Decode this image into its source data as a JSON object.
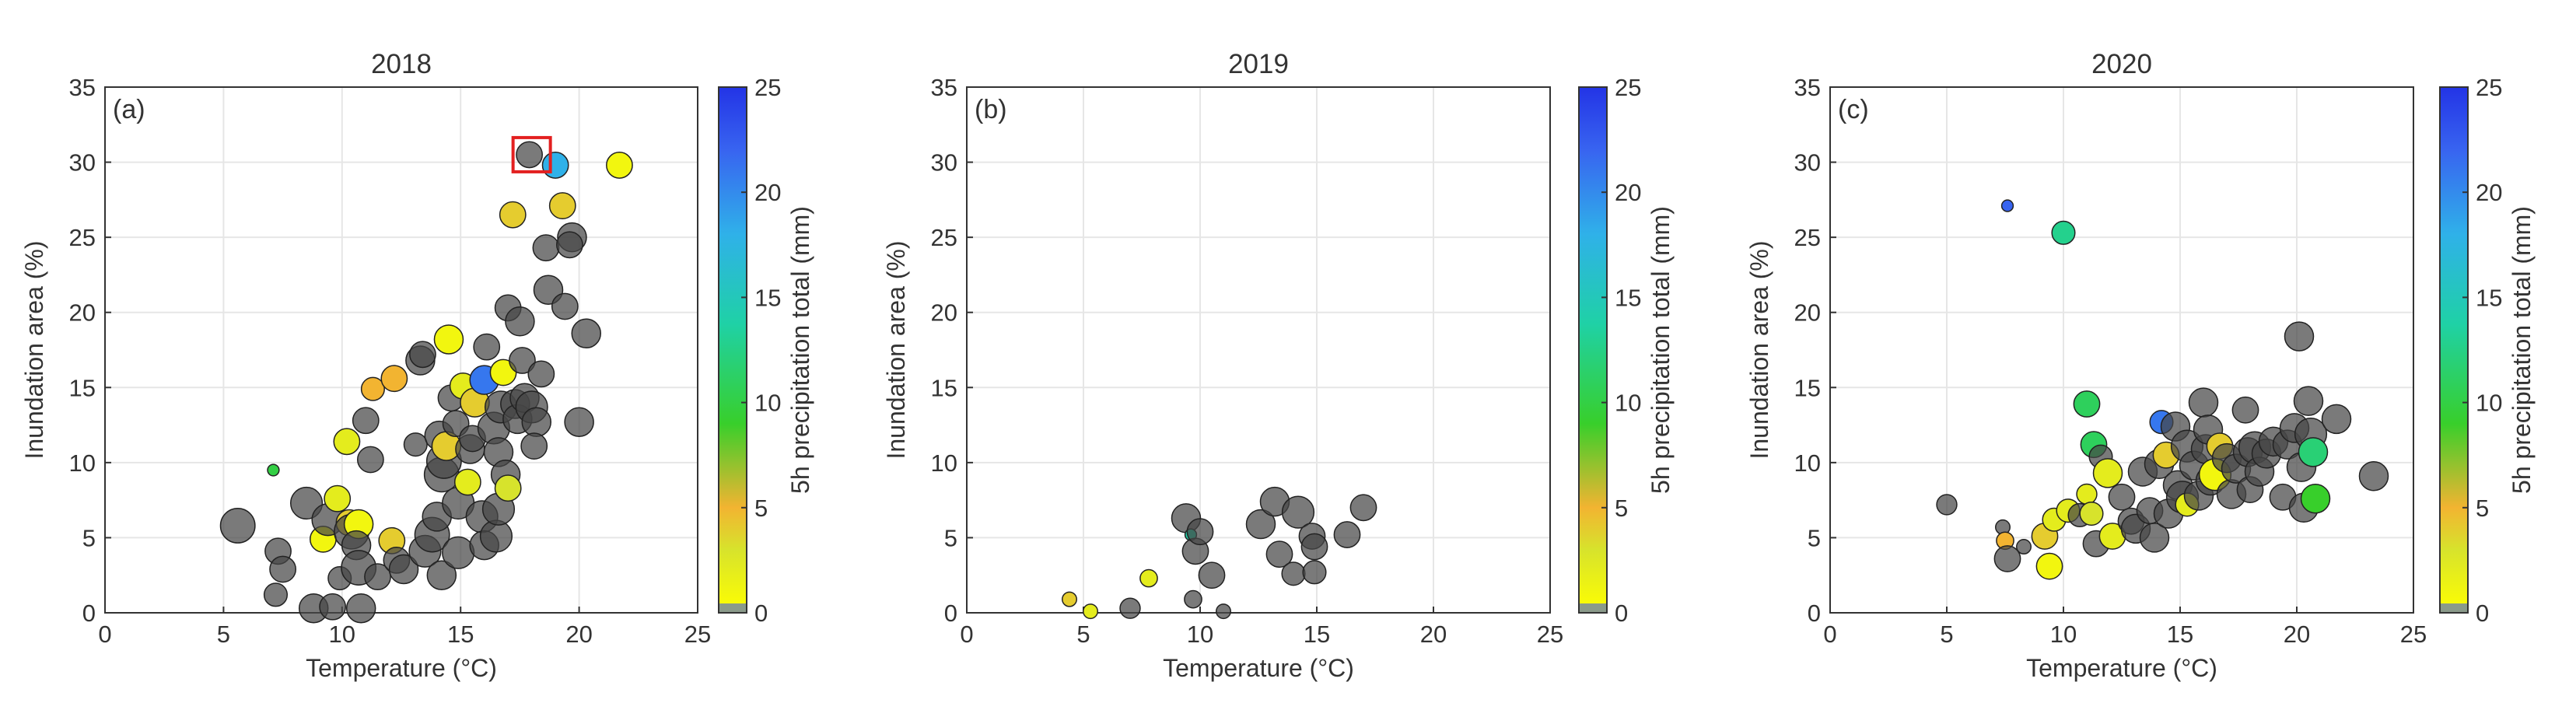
{
  "chart_data": [
    {
      "type": "scatter",
      "panel": "(a)",
      "title": "2018",
      "xlabel": "Temperature (°C)",
      "ylabel": "Inundation area (%)",
      "xlim": [
        0,
        25
      ],
      "ylim": [
        0,
        35
      ],
      "xticks": [
        0,
        5,
        10,
        15,
        20,
        25
      ],
      "yticks": [
        0,
        5,
        10,
        15,
        20,
        25,
        30,
        35
      ],
      "grid": true,
      "colorbar": {
        "label": "5h precipitation total (mm)",
        "range": [
          0,
          25
        ],
        "ticks": [
          0,
          5,
          10,
          15,
          20,
          25
        ]
      },
      "highlight": {
        "x": 18.0,
        "y": 30.5
      },
      "points": [
        {
          "x": 5.6,
          "y": 5.8,
          "p": null,
          "s": 12
        },
        {
          "x": 7.1,
          "y": 9.5,
          "p": 10,
          "s": 4
        },
        {
          "x": 7.3,
          "y": 4.1,
          "p": null,
          "s": 9
        },
        {
          "x": 7.5,
          "y": 2.9,
          "p": null,
          "s": 9
        },
        {
          "x": 7.2,
          "y": 1.2,
          "p": null,
          "s": 8
        },
        {
          "x": 8.5,
          "y": 7.3,
          "p": null,
          "s": 11
        },
        {
          "x": 8.8,
          "y": 0.3,
          "p": null,
          "s": 10
        },
        {
          "x": 9.2,
          "y": 4.9,
          "p": 1,
          "s": 9
        },
        {
          "x": 9.4,
          "y": 6.2,
          "p": null,
          "s": 11
        },
        {
          "x": 9.8,
          "y": 7.6,
          "p": 2,
          "s": 9
        },
        {
          "x": 9.9,
          "y": 2.3,
          "p": null,
          "s": 8
        },
        {
          "x": 9.6,
          "y": 0.4,
          "p": null,
          "s": 9
        },
        {
          "x": 10.2,
          "y": 11.4,
          "p": 2,
          "s": 9
        },
        {
          "x": 10.3,
          "y": 6.0,
          "p": 4,
          "s": 9
        },
        {
          "x": 10.4,
          "y": 5.4,
          "p": null,
          "s": 12
        },
        {
          "x": 10.7,
          "y": 5.9,
          "p": 1,
          "s": 10
        },
        {
          "x": 10.6,
          "y": 4.5,
          "p": null,
          "s": 10
        },
        {
          "x": 10.7,
          "y": 3.0,
          "p": null,
          "s": 12
        },
        {
          "x": 10.8,
          "y": 0.3,
          "p": null,
          "s": 10
        },
        {
          "x": 11.0,
          "y": 12.8,
          "p": null,
          "s": 9
        },
        {
          "x": 11.2,
          "y": 10.2,
          "p": null,
          "s": 9
        },
        {
          "x": 11.3,
          "y": 14.9,
          "p": 5,
          "s": 8
        },
        {
          "x": 11.5,
          "y": 2.4,
          "p": null,
          "s": 9
        },
        {
          "x": 12.1,
          "y": 4.8,
          "p": 4,
          "s": 9
        },
        {
          "x": 12.2,
          "y": 15.6,
          "p": 5,
          "s": 9
        },
        {
          "x": 12.3,
          "y": 3.5,
          "p": null,
          "s": 9
        },
        {
          "x": 12.6,
          "y": 2.9,
          "p": null,
          "s": 10
        },
        {
          "x": 13.1,
          "y": 11.2,
          "p": null,
          "s": 8
        },
        {
          "x": 13.3,
          "y": 16.8,
          "p": null,
          "s": 10
        },
        {
          "x": 13.5,
          "y": 4.1,
          "p": null,
          "s": 11
        },
        {
          "x": 13.4,
          "y": 17.2,
          "p": null,
          "s": 9
        },
        {
          "x": 13.8,
          "y": 5.2,
          "p": null,
          "s": 12
        },
        {
          "x": 14.0,
          "y": 6.4,
          "p": null,
          "s": 10
        },
        {
          "x": 14.1,
          "y": 11.8,
          "p": null,
          "s": 10
        },
        {
          "x": 14.2,
          "y": 9.2,
          "p": null,
          "s": 12
        },
        {
          "x": 14.3,
          "y": 10.1,
          "p": null,
          "s": 12
        },
        {
          "x": 14.4,
          "y": 11.1,
          "p": 4,
          "s": 10
        },
        {
          "x": 14.2,
          "y": 2.5,
          "p": null,
          "s": 10
        },
        {
          "x": 14.8,
          "y": 12.6,
          "p": null,
          "s": 9
        },
        {
          "x": 14.6,
          "y": 14.3,
          "p": null,
          "s": 9
        },
        {
          "x": 14.5,
          "y": 18.2,
          "p": 1,
          "s": 10
        },
        {
          "x": 14.9,
          "y": 4.0,
          "p": null,
          "s": 11
        },
        {
          "x": 14.9,
          "y": 7.3,
          "p": null,
          "s": 11
        },
        {
          "x": 15.1,
          "y": 15.1,
          "p": 2,
          "s": 9
        },
        {
          "x": 15.3,
          "y": 8.7,
          "p": 2,
          "s": 9
        },
        {
          "x": 15.4,
          "y": 10.9,
          "p": null,
          "s": 10
        },
        {
          "x": 15.5,
          "y": 11.6,
          "p": null,
          "s": 9
        },
        {
          "x": 15.6,
          "y": 14.0,
          "p": 4,
          "s": 10
        },
        {
          "x": 15.9,
          "y": 6.4,
          "p": null,
          "s": 11
        },
        {
          "x": 16.0,
          "y": 4.5,
          "p": null,
          "s": 10
        },
        {
          "x": 16.1,
          "y": 17.7,
          "p": null,
          "s": 9
        },
        {
          "x": 16.0,
          "y": 15.5,
          "p": 21,
          "s": 10
        },
        {
          "x": 16.4,
          "y": 12.3,
          "p": null,
          "s": 11
        },
        {
          "x": 16.5,
          "y": 5.1,
          "p": null,
          "s": 11
        },
        {
          "x": 16.6,
          "y": 10.7,
          "p": null,
          "s": 10
        },
        {
          "x": 16.6,
          "y": 6.9,
          "p": null,
          "s": 11
        },
        {
          "x": 16.7,
          "y": 13.7,
          "p": null,
          "s": 11
        },
        {
          "x": 16.8,
          "y": 16.0,
          "p": 1,
          "s": 9
        },
        {
          "x": 16.9,
          "y": 9.2,
          "p": null,
          "s": 10
        },
        {
          "x": 17.0,
          "y": 20.3,
          "p": null,
          "s": 9
        },
        {
          "x": 17.0,
          "y": 8.3,
          "p": 3,
          "s": 9
        },
        {
          "x": 17.2,
          "y": 26.5,
          "p": 4,
          "s": 9
        },
        {
          "x": 17.3,
          "y": 13.9,
          "p": null,
          "s": 10
        },
        {
          "x": 17.4,
          "y": 12.9,
          "p": null,
          "s": 10
        },
        {
          "x": 17.5,
          "y": 19.4,
          "p": null,
          "s": 10
        },
        {
          "x": 17.6,
          "y": 16.8,
          "p": null,
          "s": 9
        },
        {
          "x": 17.7,
          "y": 14.3,
          "p": null,
          "s": 10
        },
        {
          "x": 17.9,
          "y": 30.5,
          "p": null,
          "s": 9
        },
        {
          "x": 18.0,
          "y": 13.7,
          "p": null,
          "s": 11
        },
        {
          "x": 18.2,
          "y": 12.7,
          "p": null,
          "s": 10
        },
        {
          "x": 18.1,
          "y": 11.1,
          "p": null,
          "s": 9
        },
        {
          "x": 18.4,
          "y": 15.9,
          "p": null,
          "s": 9
        },
        {
          "x": 18.6,
          "y": 24.3,
          "p": null,
          "s": 9
        },
        {
          "x": 18.7,
          "y": 21.5,
          "p": null,
          "s": 10
        },
        {
          "x": 19.0,
          "y": 29.8,
          "p": 18,
          "s": 9
        },
        {
          "x": 19.3,
          "y": 27.1,
          "p": 4,
          "s": 9
        },
        {
          "x": 19.4,
          "y": 20.4,
          "p": null,
          "s": 9
        },
        {
          "x": 19.7,
          "y": 25.0,
          "p": null,
          "s": 10
        },
        {
          "x": 19.6,
          "y": 24.5,
          "p": null,
          "s": 9
        },
        {
          "x": 20.0,
          "y": 12.7,
          "p": null,
          "s": 10
        },
        {
          "x": 20.3,
          "y": 18.6,
          "p": null,
          "s": 10
        },
        {
          "x": 21.7,
          "y": 29.8,
          "p": 1,
          "s": 9
        }
      ]
    },
    {
      "type": "scatter",
      "panel": "(b)",
      "title": "2019",
      "xlabel": "Temperature (°C)",
      "ylabel": "Inundation area (%)",
      "xlim": [
        0,
        25
      ],
      "ylim": [
        0,
        35
      ],
      "xticks": [
        0,
        5,
        10,
        15,
        20,
        25
      ],
      "yticks": [
        0,
        5,
        10,
        15,
        20,
        25,
        30,
        35
      ],
      "grid": true,
      "colorbar": {
        "label": "5h precipitation total (mm)",
        "range": [
          0,
          25
        ],
        "ticks": [
          0,
          5,
          10,
          15,
          20,
          25
        ]
      },
      "points": [
        {
          "x": 4.4,
          "y": 0.9,
          "p": 4,
          "s": 5
        },
        {
          "x": 5.3,
          "y": 0.1,
          "p": 2,
          "s": 5
        },
        {
          "x": 7.0,
          "y": 0.3,
          "p": null,
          "s": 7
        },
        {
          "x": 7.8,
          "y": 2.3,
          "p": 2,
          "s": 6
        },
        {
          "x": 9.4,
          "y": 6.3,
          "p": null,
          "s": 10
        },
        {
          "x": 9.6,
          "y": 5.2,
          "p": 14,
          "s": 4
        },
        {
          "x": 9.8,
          "y": 4.1,
          "p": null,
          "s": 9
        },
        {
          "x": 9.7,
          "y": 0.9,
          "p": null,
          "s": 6
        },
        {
          "x": 10.0,
          "y": 5.4,
          "p": null,
          "s": 9
        },
        {
          "x": 10.5,
          "y": 2.5,
          "p": null,
          "s": 9
        },
        {
          "x": 11.0,
          "y": 0.1,
          "p": null,
          "s": 5
        },
        {
          "x": 12.6,
          "y": 5.9,
          "p": null,
          "s": 10
        },
        {
          "x": 13.2,
          "y": 7.4,
          "p": null,
          "s": 10
        },
        {
          "x": 13.4,
          "y": 3.9,
          "p": null,
          "s": 9
        },
        {
          "x": 14.0,
          "y": 2.6,
          "p": null,
          "s": 8
        },
        {
          "x": 14.2,
          "y": 6.7,
          "p": null,
          "s": 11
        },
        {
          "x": 14.8,
          "y": 5.1,
          "p": null,
          "s": 9
        },
        {
          "x": 14.9,
          "y": 4.4,
          "p": null,
          "s": 9
        },
        {
          "x": 14.9,
          "y": 2.7,
          "p": null,
          "s": 8
        },
        {
          "x": 16.3,
          "y": 5.2,
          "p": null,
          "s": 9
        },
        {
          "x": 17.0,
          "y": 7.0,
          "p": null,
          "s": 9
        }
      ]
    },
    {
      "type": "scatter",
      "panel": "(c)",
      "title": "2020",
      "xlabel": "Temperature (°C)",
      "ylabel": "Inundation area (%)",
      "xlim": [
        0,
        25
      ],
      "ylim": [
        0,
        35
      ],
      "xticks": [
        0,
        5,
        10,
        15,
        20,
        25
      ],
      "yticks": [
        0,
        5,
        10,
        15,
        20,
        25,
        30,
        35
      ],
      "grid": true,
      "colorbar": {
        "label": "5h precipitation total (mm)",
        "range": [
          0,
          25
        ],
        "ticks": [
          0,
          5,
          10,
          15,
          20,
          25
        ]
      },
      "points": [
        {
          "x": 5.0,
          "y": 7.2,
          "p": null,
          "s": 7
        },
        {
          "x": 7.6,
          "y": 27.1,
          "p": 22,
          "s": 4
        },
        {
          "x": 7.4,
          "y": 5.7,
          "p": null,
          "s": 5
        },
        {
          "x": 7.5,
          "y": 4.8,
          "p": 5,
          "s": 6
        },
        {
          "x": 7.6,
          "y": 3.6,
          "p": null,
          "s": 9
        },
        {
          "x": 8.3,
          "y": 4.4,
          "p": null,
          "s": 5
        },
        {
          "x": 9.2,
          "y": 5.1,
          "p": 4,
          "s": 9
        },
        {
          "x": 9.4,
          "y": 3.1,
          "p": 1,
          "s": 9
        },
        {
          "x": 9.6,
          "y": 6.2,
          "p": 2,
          "s": 8
        },
        {
          "x": 10.0,
          "y": 25.3,
          "p": 13,
          "s": 8
        },
        {
          "x": 10.2,
          "y": 6.8,
          "p": 2,
          "s": 8
        },
        {
          "x": 10.7,
          "y": 6.5,
          "p": null,
          "s": 8
        },
        {
          "x": 11.0,
          "y": 13.9,
          "p": 11,
          "s": 9
        },
        {
          "x": 11.0,
          "y": 7.9,
          "p": 2,
          "s": 7
        },
        {
          "x": 11.2,
          "y": 6.6,
          "p": 3,
          "s": 8
        },
        {
          "x": 11.3,
          "y": 11.2,
          "p": 11,
          "s": 9
        },
        {
          "x": 11.4,
          "y": 4.6,
          "p": null,
          "s": 9
        },
        {
          "x": 11.6,
          "y": 10.4,
          "p": null,
          "s": 8
        },
        {
          "x": 11.9,
          "y": 9.3,
          "p": 2,
          "s": 10
        },
        {
          "x": 12.1,
          "y": 5.1,
          "p": 2,
          "s": 9
        },
        {
          "x": 12.5,
          "y": 7.7,
          "p": null,
          "s": 9
        },
        {
          "x": 12.9,
          "y": 6.1,
          "p": null,
          "s": 9
        },
        {
          "x": 13.1,
          "y": 5.6,
          "p": null,
          "s": 10
        },
        {
          "x": 13.4,
          "y": 9.4,
          "p": null,
          "s": 10
        },
        {
          "x": 13.7,
          "y": 6.8,
          "p": null,
          "s": 9
        },
        {
          "x": 13.9,
          "y": 5.0,
          "p": null,
          "s": 10
        },
        {
          "x": 14.1,
          "y": 9.9,
          "p": null,
          "s": 10
        },
        {
          "x": 14.2,
          "y": 12.7,
          "p": 21,
          "s": 8
        },
        {
          "x": 14.4,
          "y": 10.5,
          "p": 4,
          "s": 9
        },
        {
          "x": 14.5,
          "y": 6.6,
          "p": null,
          "s": 10
        },
        {
          "x": 14.8,
          "y": 12.4,
          "p": null,
          "s": 10
        },
        {
          "x": 14.9,
          "y": 8.5,
          "p": null,
          "s": 10
        },
        {
          "x": 15.1,
          "y": 7.7,
          "p": null,
          "s": 11
        },
        {
          "x": 15.3,
          "y": 11.1,
          "p": null,
          "s": 11
        },
        {
          "x": 15.3,
          "y": 7.2,
          "p": 2,
          "s": 8
        },
        {
          "x": 15.6,
          "y": 9.8,
          "p": null,
          "s": 10
        },
        {
          "x": 15.8,
          "y": 7.8,
          "p": null,
          "s": 10
        },
        {
          "x": 16.0,
          "y": 14.0,
          "p": null,
          "s": 10
        },
        {
          "x": 16.1,
          "y": 10.9,
          "p": null,
          "s": 10
        },
        {
          "x": 16.2,
          "y": 12.2,
          "p": null,
          "s": 10
        },
        {
          "x": 16.3,
          "y": 8.8,
          "p": null,
          "s": 10
        },
        {
          "x": 16.5,
          "y": 9.2,
          "p": 1,
          "s": 11
        },
        {
          "x": 16.7,
          "y": 11.1,
          "p": 4,
          "s": 9
        },
        {
          "x": 17.0,
          "y": 10.3,
          "p": null,
          "s": 10
        },
        {
          "x": 17.2,
          "y": 7.9,
          "p": null,
          "s": 10
        },
        {
          "x": 17.4,
          "y": 9.6,
          "p": null,
          "s": 10
        },
        {
          "x": 17.8,
          "y": 13.5,
          "p": null,
          "s": 9
        },
        {
          "x": 17.9,
          "y": 10.7,
          "p": null,
          "s": 10
        },
        {
          "x": 18.0,
          "y": 8.2,
          "p": null,
          "s": 9
        },
        {
          "x": 18.2,
          "y": 11.0,
          "p": null,
          "s": 11
        },
        {
          "x": 18.4,
          "y": 9.4,
          "p": null,
          "s": 10
        },
        {
          "x": 18.7,
          "y": 10.6,
          "p": null,
          "s": 10
        },
        {
          "x": 19.0,
          "y": 11.4,
          "p": null,
          "s": 10
        },
        {
          "x": 19.4,
          "y": 7.7,
          "p": null,
          "s": 9
        },
        {
          "x": 19.6,
          "y": 11.2,
          "p": null,
          "s": 10
        },
        {
          "x": 19.9,
          "y": 12.3,
          "p": null,
          "s": 10
        },
        {
          "x": 20.1,
          "y": 18.4,
          "p": null,
          "s": 10
        },
        {
          "x": 20.2,
          "y": 9.7,
          "p": null,
          "s": 10
        },
        {
          "x": 20.3,
          "y": 7.0,
          "p": null,
          "s": 10
        },
        {
          "x": 20.5,
          "y": 14.1,
          "p": null,
          "s": 10
        },
        {
          "x": 20.6,
          "y": 11.9,
          "p": null,
          "s": 11
        },
        {
          "x": 20.7,
          "y": 10.7,
          "p": 12,
          "s": 10
        },
        {
          "x": 20.8,
          "y": 7.6,
          "p": 9,
          "s": 10
        },
        {
          "x": 21.7,
          "y": 12.9,
          "p": null,
          "s": 10
        },
        {
          "x": 23.3,
          "y": 9.1,
          "p": null,
          "s": 10
        }
      ]
    }
  ]
}
